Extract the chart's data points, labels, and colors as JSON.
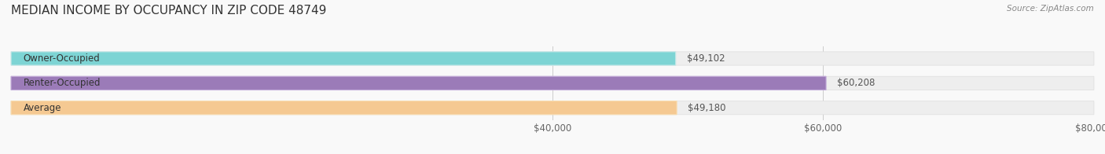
{
  "title": "MEDIAN INCOME BY OCCUPANCY IN ZIP CODE 48749",
  "source": "Source: ZipAtlas.com",
  "categories": [
    "Owner-Occupied",
    "Renter-Occupied",
    "Average"
  ],
  "values": [
    49102,
    60208,
    49180
  ],
  "bar_colors": [
    "#7dd4d4",
    "#9b7bb8",
    "#f5c992"
  ],
  "bar_edge_colors": [
    "#c8e8e8",
    "#c0a8d8",
    "#f8ddb0"
  ],
  "bg_bar_color": "#eeeeee",
  "bg_bar_edge_color": "#dddddd",
  "xlim": [
    0,
    80000
  ],
  "xticks": [
    40000,
    60000,
    80000
  ],
  "xtick_labels": [
    "$40,000",
    "$60,000",
    "$80,000"
  ],
  "value_labels": [
    "$49,102",
    "$60,208",
    "$49,180"
  ],
  "title_fontsize": 11,
  "label_fontsize": 8.5,
  "value_fontsize": 8.5,
  "tick_fontsize": 8.5,
  "bar_height": 0.55,
  "background_color": "#f9f9f9"
}
